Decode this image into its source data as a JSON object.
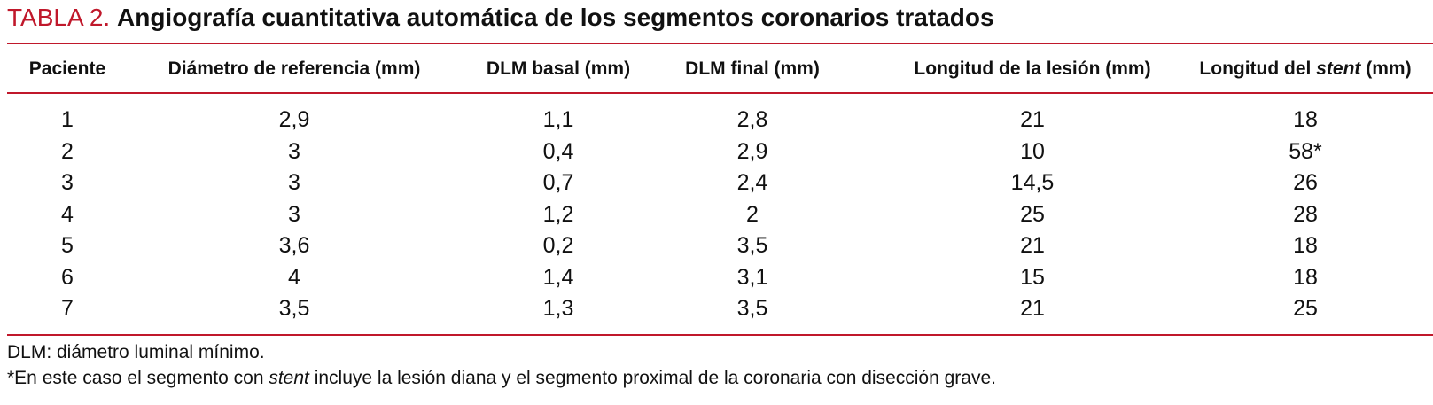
{
  "title": {
    "label": "TABLA 2.",
    "text": "Angiografía cuantitativa automática de los segmentos coronarios tratados"
  },
  "colors": {
    "accent": "#c0182b",
    "text": "#111111",
    "background": "#ffffff"
  },
  "table": {
    "headers": [
      "Paciente",
      "Diámetro de referencia (mm)",
      "DLM basal (mm)",
      "DLM final (mm)",
      "Longitud de la lesión (mm)"
    ],
    "stent_header": {
      "before": "Longitud del ",
      "italic": "stent",
      "after": " (mm)"
    },
    "rows": [
      [
        "1",
        "2,9",
        "1,1",
        "2,8",
        "21",
        "18"
      ],
      [
        "2",
        "3",
        "0,4",
        "2,9",
        "10",
        "58*"
      ],
      [
        "3",
        "3",
        "0,7",
        "2,4",
        "14,5",
        "26"
      ],
      [
        "4",
        "3",
        "1,2",
        "2",
        "25",
        "28"
      ],
      [
        "5",
        "3,6",
        "0,2",
        "3,5",
        "21",
        "18"
      ],
      [
        "6",
        "4",
        "1,4",
        "3,1",
        "15",
        "18"
      ],
      [
        "7",
        "3,5",
        "1,3",
        "3,5",
        "21",
        "25"
      ]
    ]
  },
  "footnotes": {
    "abbreviation": "DLM: diámetro luminal mínimo.",
    "asterisk_before": "*En este caso el segmento con ",
    "asterisk_italic": "stent",
    "asterisk_after": " incluye la lesión diana y el segmento proximal de la coronaria con disección grave."
  }
}
